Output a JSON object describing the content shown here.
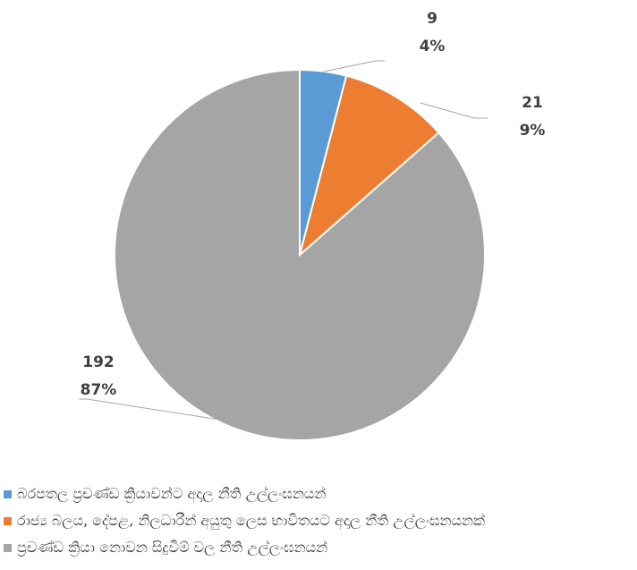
{
  "chart_data": {
    "type": "pie",
    "title": "",
    "slices": [
      {
        "label": "බරපතල ප්‍රචණ්ඩ ක්‍රියාවන්ට අදාල නීති උල්ලංඝනයන්",
        "value": 9,
        "percent": "4%",
        "color": "#5b9bd5"
      },
      {
        "label": "රාජ්‍ය බලය, දේපළ, නිලධාරීන් අයුතු ලෙස භාවිතයට අදාල නීති උල්ලංඝනයනක්",
        "value": 21,
        "percent": "9%",
        "color": "#ed7d31"
      },
      {
        "label": "ප්‍රචණ්ඩ ක්‍රියා නොවන සිදුවීම් වල නීති උල්ලංඝනයන්",
        "value": 192,
        "percent": "87%",
        "color": "#a5a5a5"
      }
    ],
    "legend_position": "bottom"
  }
}
